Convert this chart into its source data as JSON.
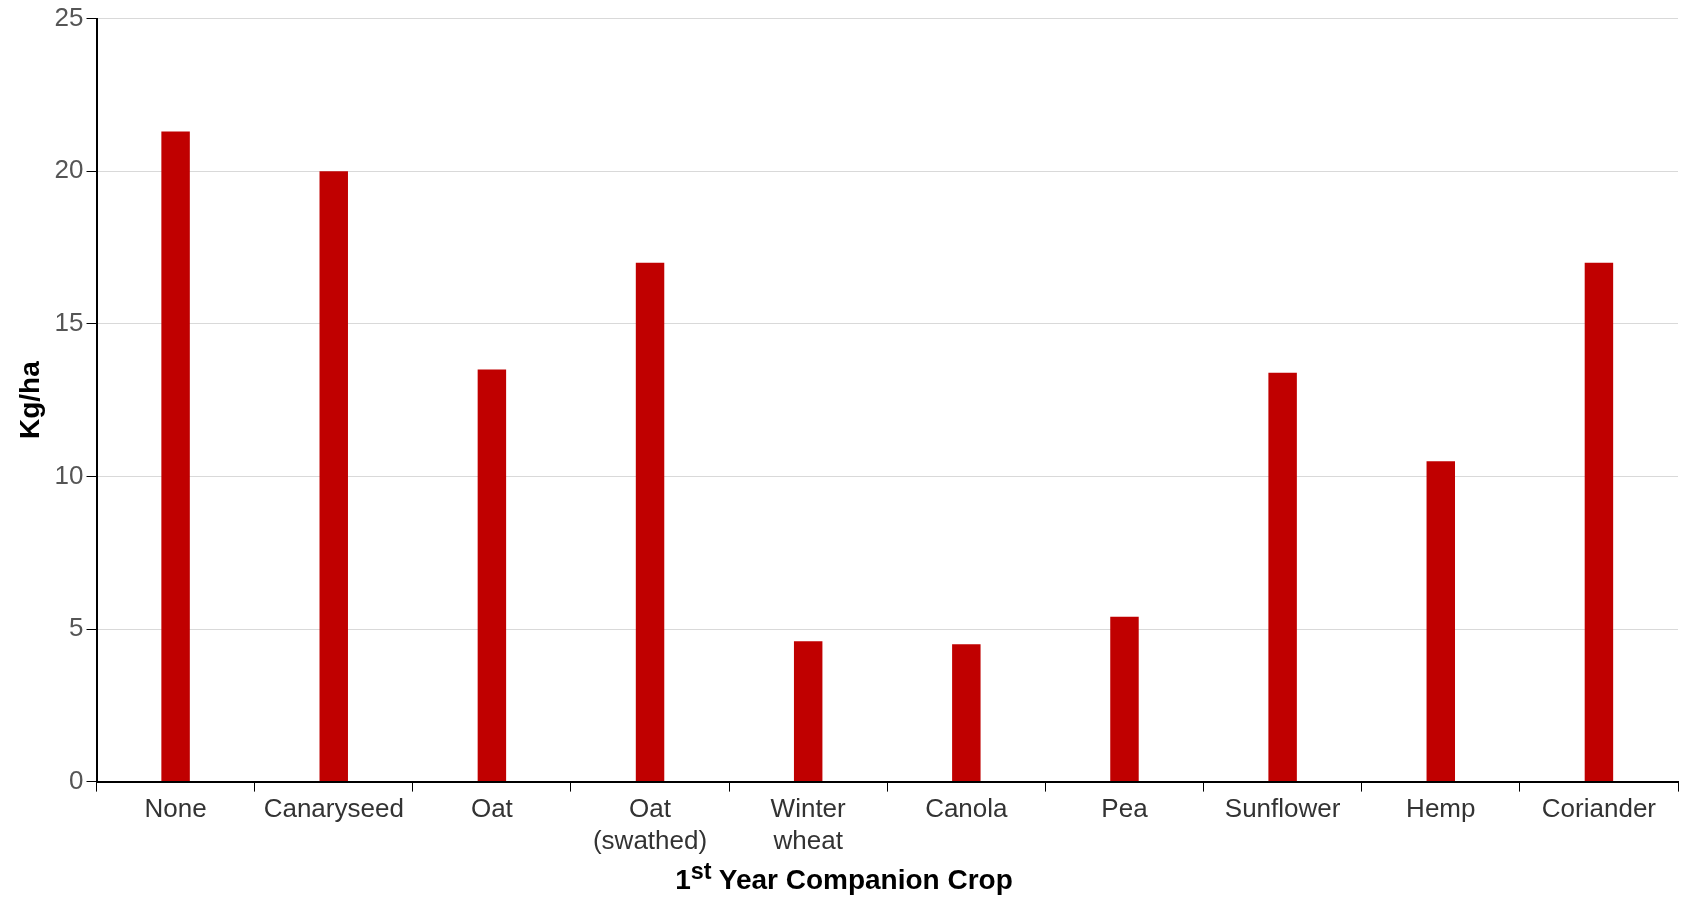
{
  "chart_data": {
    "type": "bar",
    "xlabel": "1$^{st}$ Year Companion Crop",
    "ylabel": "Kg/ha",
    "categories": [
      "None",
      "Canaryseed",
      "Oat",
      "Oat (swathed)",
      "Winter wheat",
      "Canola",
      "Pea",
      "Sunflower",
      "Hemp",
      "Coriander"
    ],
    "values": [
      21.3,
      20.0,
      13.5,
      17.0,
      4.6,
      4.5,
      5.4,
      13.4,
      10.5,
      17.0
    ],
    "color": "#c00000",
    "ylim": [
      0,
      25
    ],
    "yticks": [
      0,
      5,
      10,
      15,
      20,
      25
    ],
    "grid": "y"
  }
}
